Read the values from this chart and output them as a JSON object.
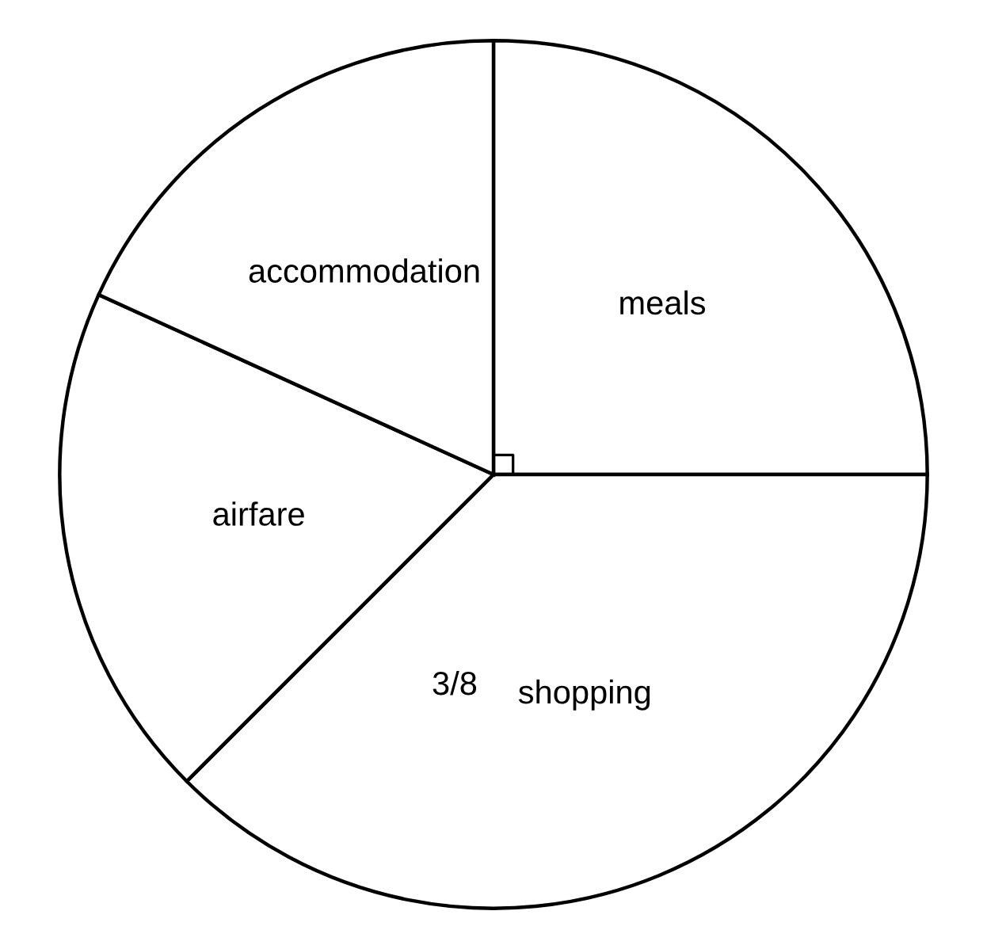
{
  "chart_data": {
    "type": "pie",
    "categories": [
      "meals",
      "shopping",
      "airfare",
      "accommodation"
    ],
    "values": [
      25,
      37.5,
      19.3,
      18.2
    ],
    "colors": [
      "#ffffff",
      "#ffffff",
      "#ffffff",
      "#ffffff"
    ],
    "annotations": [
      {
        "text": "3/8",
        "x": "shopping"
      }
    ]
  }
}
